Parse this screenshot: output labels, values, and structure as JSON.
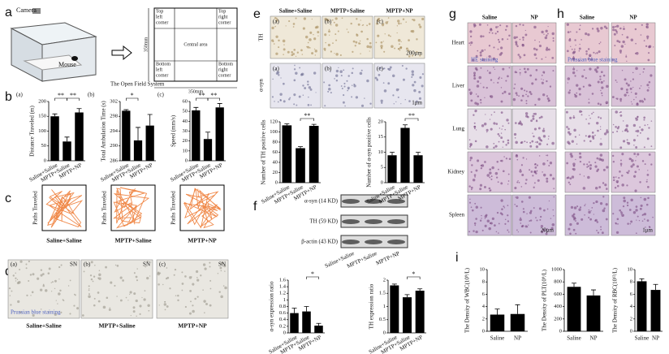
{
  "figure": {
    "panel_letters": [
      "a",
      "b",
      "c",
      "d",
      "e",
      "f",
      "g",
      "h",
      "i"
    ],
    "a": {
      "camera": "Camera",
      "mouse": "Mouse",
      "caption": "The Open Field System",
      "corners": [
        [
          "Top",
          "left",
          "corner"
        ],
        [
          "Top",
          "right",
          "corner"
        ],
        [
          "Bottom",
          "left",
          "corner"
        ],
        [
          "Bottom",
          "right",
          "corner"
        ]
      ],
      "central": "Central area",
      "dims": [
        "350mm",
        "350mm"
      ]
    },
    "c": {
      "y_labels": [
        "Paths Traveled",
        "Paths Traveled",
        "Paths Traveled"
      ],
      "captions": [
        "Saline+Saline",
        "MPTP+Saline",
        "MPTP+NP"
      ]
    },
    "d": {
      "subs": [
        "(a)",
        "(b)",
        "(c)"
      ],
      "region": [
        "SN",
        "SN",
        "SN"
      ],
      "stain": "Prussian blue staining",
      "captions": [
        "Saline+Saline",
        "MPTP+Saline",
        "MPTP+NP"
      ]
    },
    "e": {
      "headers": [
        "Saline+Saline",
        "MPTP+Saline",
        "MPTP+NP"
      ],
      "rows": [
        "TH",
        "α-syn"
      ],
      "subs_th": [
        "(a)",
        "(b)",
        "(c)"
      ],
      "subs_syn": [
        "(a)",
        "(b)",
        "(c)"
      ],
      "scales": [
        "200μm",
        "1μm"
      ]
    },
    "f": {
      "bands": [
        "α-syn (14 KD)",
        "TH (59 KD)",
        "β-actin (43 KD)"
      ],
      "lanes": [
        "Saline+Saline",
        "MPTP+Saline",
        "MPTP+NP"
      ]
    },
    "g": {
      "headers": [
        "Saline",
        "NP"
      ],
      "organs": [
        "Heart",
        "Liver",
        "Lung",
        "Kidney",
        "Spleen"
      ],
      "stain": "HE staining",
      "scale": "20μm"
    },
    "h": {
      "headers": [
        "Saline",
        "NP"
      ],
      "stain": "Prussian blue staining",
      "scale": "1μm"
    }
  },
  "chart_data": [
    {
      "type": "bar",
      "panel_label": "(a)",
      "y_label": "Distance Traveled (m)",
      "categories": [
        "Saline+Saline",
        "MPTP+Saline",
        "MPTP+NP"
      ],
      "values": [
        150,
        65,
        163
      ],
      "errors": [
        8,
        15,
        13
      ],
      "ylim": [
        0,
        200
      ],
      "yticks": [
        0,
        50,
        100,
        150,
        200
      ],
      "annotations": [
        "**",
        "**"
      ],
      "color": "#000000"
    },
    {
      "type": "bar",
      "panel_label": "(b)",
      "y_label": "Total Ambulation Time (s)",
      "categories": [
        "Saline+Saline",
        "MPTP+Saline",
        "MPTP+NP"
      ],
      "values": [
        299.5,
        291.5,
        295.5
      ],
      "errors": [
        0.3,
        3.5,
        3
      ],
      "ylim": [
        286,
        302
      ],
      "yticks": [
        286,
        290,
        294,
        298,
        302
      ],
      "annotations": [
        "*"
      ],
      "color": "#000000"
    },
    {
      "type": "bar",
      "panel_label": "(c)",
      "y_label": "Speed (mm/s)",
      "categories": [
        "Saline+Saline",
        "MPTP+Saline",
        "MPTP+NP"
      ],
      "values": [
        51,
        22,
        54
      ],
      "errors": [
        3,
        7,
        4
      ],
      "ylim": [
        0,
        60
      ],
      "yticks": [
        0,
        10,
        20,
        30,
        40,
        50,
        60
      ],
      "annotations": [
        "**",
        "**"
      ],
      "color": "#000000"
    },
    {
      "type": "bar",
      "y_label": "Number of TH positive cells",
      "categories": [
        "Saline+Saline",
        "MPTP+Saline",
        "MPTP+NP"
      ],
      "values": [
        113,
        68,
        112
      ],
      "errors": [
        3,
        3,
        3
      ],
      "ylim": [
        0,
        120
      ],
      "yticks": [
        0,
        20,
        40,
        60,
        80,
        100,
        120
      ],
      "annotations": [
        "**"
      ],
      "color": "#000000"
    },
    {
      "type": "bar",
      "y_label": "Number of α-syn positive cells",
      "categories": [
        "Saline+Saline",
        "MPTP+Saline",
        "MPTP+NP"
      ],
      "values": [
        9,
        18,
        9
      ],
      "errors": [
        1,
        1,
        1
      ],
      "ylim": [
        0,
        20
      ],
      "yticks": [
        0,
        5,
        10,
        15,
        20
      ],
      "annotations": [
        "**"
      ],
      "color": "#000000"
    },
    {
      "type": "bar",
      "y_label": "α-syn expression ratio",
      "categories": [
        "Saline+Saline",
        "MPTP+Saline",
        "MPTP+NP"
      ],
      "values": [
        0.6,
        0.65,
        0.22
      ],
      "errors": [
        0.15,
        0.15,
        0.07
      ],
      "ylim": [
        0,
        1.6
      ],
      "yticks": [
        0,
        0.2,
        0.4,
        0.6,
        0.8,
        1,
        1.2,
        1.4,
        1.6
      ],
      "annotations": [
        "*"
      ],
      "color": "#000000"
    },
    {
      "type": "bar",
      "y_label": "TH expression ratio",
      "categories": [
        "Saline+Saline",
        "MPTP+Saline",
        "MPTP+NP"
      ],
      "values": [
        1.8,
        1.35,
        1.6
      ],
      "errors": [
        0.05,
        0.1,
        0.07
      ],
      "ylim": [
        0,
        2
      ],
      "yticks": [
        0,
        0.5,
        1,
        1.5,
        2
      ],
      "annotations": [
        "*"
      ],
      "color": "#000000"
    },
    {
      "type": "bar",
      "y_label": "The Density of WBC(10⁹/L)",
      "categories": [
        "Saline",
        "NP"
      ],
      "values": [
        2.7,
        2.8
      ],
      "errors": [
        0.9,
        1.5
      ],
      "ylim": [
        0,
        10
      ],
      "yticks": [
        0,
        2,
        4,
        6,
        8,
        10
      ],
      "color": "#000000"
    },
    {
      "type": "bar",
      "y_label": "The Density of PLT(10⁹/L)",
      "categories": [
        "Saline",
        "NP"
      ],
      "values": [
        720,
        580
      ],
      "errors": [
        60,
        90
      ],
      "ylim": [
        0,
        1000
      ],
      "yticks": [
        0,
        200,
        400,
        600,
        800,
        1000
      ],
      "color": "#000000"
    },
    {
      "type": "bar",
      "y_label": "The Density of RBC(10¹²/L)",
      "categories": [
        "Saline",
        "NP"
      ],
      "values": [
        8.1,
        6.7
      ],
      "errors": [
        0.4,
        0.9
      ],
      "ylim": [
        0,
        10
      ],
      "yticks": [
        0,
        2,
        4,
        6,
        8,
        10
      ],
      "color": "#000000"
    }
  ]
}
